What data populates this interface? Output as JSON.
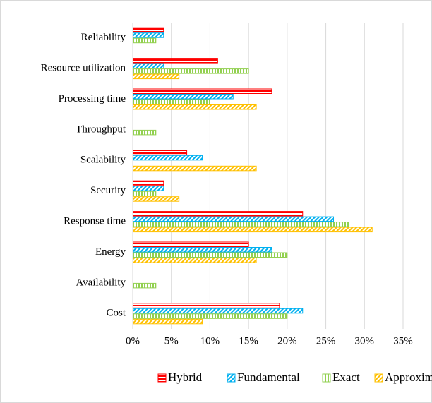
{
  "chart_data": {
    "type": "bar",
    "orientation": "horizontal",
    "categories": [
      "Reliability",
      "Resource utilization",
      "Processing time",
      "Throughput",
      "Scalability",
      "Security",
      "Response time",
      "Energy",
      "Availability",
      "Cost"
    ],
    "series": [
      {
        "name": "Hybrid",
        "color": "#ff0000",
        "pattern": "horizontal",
        "values": [
          4,
          11,
          18,
          0,
          7,
          4,
          22,
          15,
          0,
          19
        ]
      },
      {
        "name": "Fundamental",
        "color": "#00b0f0",
        "pattern": "diagonal",
        "values": [
          4,
          4,
          13,
          0,
          9,
          4,
          26,
          18,
          0,
          22
        ]
      },
      {
        "name": "Exact",
        "color": "#92d050",
        "pattern": "vertical",
        "values": [
          3,
          15,
          10,
          3,
          0,
          3,
          28,
          20,
          3,
          20
        ]
      },
      {
        "name": "Approximate",
        "color": "#ffc000",
        "pattern": "diagonal",
        "values": [
          0,
          6,
          16,
          0,
          16,
          6,
          31,
          16,
          0,
          9
        ]
      }
    ],
    "xlim": [
      0,
      35
    ],
    "xticks": [
      {
        "value": 0,
        "label": "0%"
      },
      {
        "value": 5,
        "label": "5%"
      },
      {
        "value": 10,
        "label": "10%"
      },
      {
        "value": 15,
        "label": "15%"
      },
      {
        "value": 20,
        "label": "20%"
      },
      {
        "value": 25,
        "label": "25%"
      },
      {
        "value": 30,
        "label": "30%"
      },
      {
        "value": 35,
        "label": "35%"
      }
    ],
    "grid": true,
    "legend": "bottom"
  }
}
